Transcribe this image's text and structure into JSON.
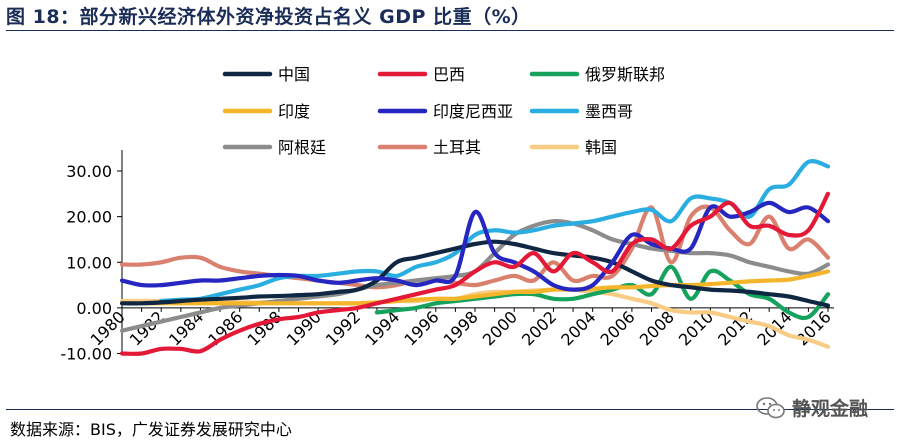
{
  "header": {
    "title": "图 18：部分新兴经济体外资净投资占名义 GDP 比重（%）"
  },
  "footer": {
    "source": "数据来源：BIS，广发证券发展研究中心",
    "watermark": "静观金融"
  },
  "chart_data": {
    "type": "line",
    "title": "",
    "xlabel": "",
    "ylabel": "",
    "ylim": [
      -10,
      32
    ],
    "yticks": [
      -10,
      0,
      10,
      20,
      30
    ],
    "ytick_labels": [
      "-10.00",
      "0.00",
      "10.00",
      "20.00",
      "30.00"
    ],
    "xtick_labels": [
      "1980",
      "1982",
      "1984",
      "1986",
      "1988",
      "1990",
      "1992",
      "1994",
      "1996",
      "1998",
      "2000",
      "2002",
      "2004",
      "2006",
      "2008",
      "2010",
      "2012",
      "2014",
      "2016"
    ],
    "x": [
      1980,
      1981,
      1982,
      1983,
      1984,
      1985,
      1986,
      1987,
      1988,
      1989,
      1990,
      1991,
      1992,
      1993,
      1994,
      1995,
      1996,
      1997,
      1998,
      1999,
      2000,
      2001,
      2002,
      2003,
      2004,
      2005,
      2006,
      2007,
      2008,
      2009,
      2010,
      2011,
      2012,
      2013,
      2014,
      2015,
      2016
    ],
    "legend_position": "top",
    "series": [
      {
        "name": "中国",
        "color": "#0f2742",
        "values": [
          1,
          1,
          1.2,
          1.5,
          1.8,
          2,
          2.2,
          2.5,
          2.6,
          2.8,
          3,
          3.5,
          4,
          6,
          10,
          11,
          12,
          13,
          14,
          14.5,
          14,
          13,
          12,
          11.5,
          11,
          10,
          8,
          6,
          5,
          4.5,
          4,
          3.8,
          3.5,
          3,
          2.5,
          1.5,
          0.5
        ]
      },
      {
        "name": "巴西",
        "color": "#e31937",
        "values": [
          -10,
          -10,
          -9,
          -9,
          -9.5,
          -7,
          -5,
          -3.5,
          -2.5,
          -2,
          -1,
          -0.5,
          0,
          1,
          2,
          3,
          4,
          5,
          8,
          10,
          9,
          12,
          8,
          12,
          10,
          8,
          14,
          15,
          13,
          18,
          20,
          23,
          18,
          18,
          16,
          17,
          25
        ]
      },
      {
        "name": "俄罗斯联邦",
        "color": "#14a25c",
        "values": [
          null,
          null,
          null,
          null,
          null,
          null,
          null,
          null,
          null,
          null,
          null,
          null,
          null,
          -1,
          -0.5,
          0,
          1,
          1.5,
          2,
          2.5,
          3,
          3,
          2,
          2,
          3,
          4,
          5,
          3,
          9,
          2,
          8,
          6,
          3,
          2,
          -1,
          -2,
          3
        ]
      },
      {
        "name": "印度",
        "color": "#f5b52b",
        "values": [
          1,
          1,
          1,
          1,
          1,
          1,
          1,
          1,
          1,
          1,
          1,
          1,
          1,
          1.2,
          1.5,
          1.8,
          2,
          2,
          2.5,
          3,
          3.5,
          3.5,
          4,
          4,
          4.2,
          4.5,
          4.5,
          4.8,
          5,
          5,
          5.2,
          5.5,
          5.8,
          6,
          6.2,
          7,
          8
        ]
      },
      {
        "name": "印度尼西亚",
        "color": "#2626c0",
        "values": [
          6,
          5,
          5,
          5.5,
          6,
          6,
          6.5,
          7,
          7.2,
          7,
          6,
          5.5,
          6,
          6.5,
          6,
          5,
          6,
          7,
          21,
          12,
          10,
          8,
          5,
          4,
          5,
          10,
          16,
          14,
          13,
          13,
          22,
          20,
          21,
          23,
          21,
          22,
          19
        ]
      },
      {
        "name": "墨西哥",
        "color": "#2aaee2",
        "values": [
          null,
          null,
          1.5,
          1.8,
          2,
          3,
          4,
          5,
          6.5,
          7,
          7,
          7.5,
          8,
          8,
          7,
          9,
          10,
          12,
          16,
          17,
          16.5,
          17,
          18,
          18.5,
          19,
          20,
          21,
          21.5,
          19,
          24,
          24,
          23,
          20,
          26,
          27,
          32,
          31
        ]
      },
      {
        "name": "阿根廷",
        "color": "#8c8c8c",
        "values": [
          -5,
          -4,
          -3,
          -2,
          -1,
          0,
          0.5,
          1,
          1.5,
          2,
          2.5,
          3,
          4,
          5,
          5.5,
          6,
          6.5,
          7,
          8,
          12,
          16,
          18,
          19,
          18.5,
          17,
          15,
          14,
          13,
          12.5,
          12,
          12,
          11.5,
          10,
          9,
          8,
          7.5,
          9.5
        ]
      },
      {
        "name": "土耳其",
        "color": "#d9806e",
        "values": [
          9.5,
          9.5,
          10,
          11,
          11,
          9,
          8,
          7.5,
          7,
          6.5,
          6,
          5.5,
          5,
          4.5,
          5,
          6,
          6,
          5.5,
          5,
          6,
          7,
          6,
          10,
          6,
          7,
          7,
          13,
          22,
          10,
          20,
          22,
          17,
          14,
          20,
          13,
          15,
          11
        ]
      },
      {
        "name": "韩国",
        "color": "#f8cc84",
        "values": [
          1.5,
          1.5,
          1.5,
          1.5,
          1.5,
          1.5,
          1.2,
          1.2,
          1.2,
          1,
          1,
          1,
          1,
          1.2,
          1.5,
          1.5,
          2,
          2,
          3,
          3.5,
          3.5,
          3.8,
          4,
          4,
          3.5,
          3,
          2,
          1,
          -0.5,
          -1,
          -1,
          -2,
          -3,
          -4,
          -6,
          -7,
          -8.5
        ]
      }
    ]
  }
}
